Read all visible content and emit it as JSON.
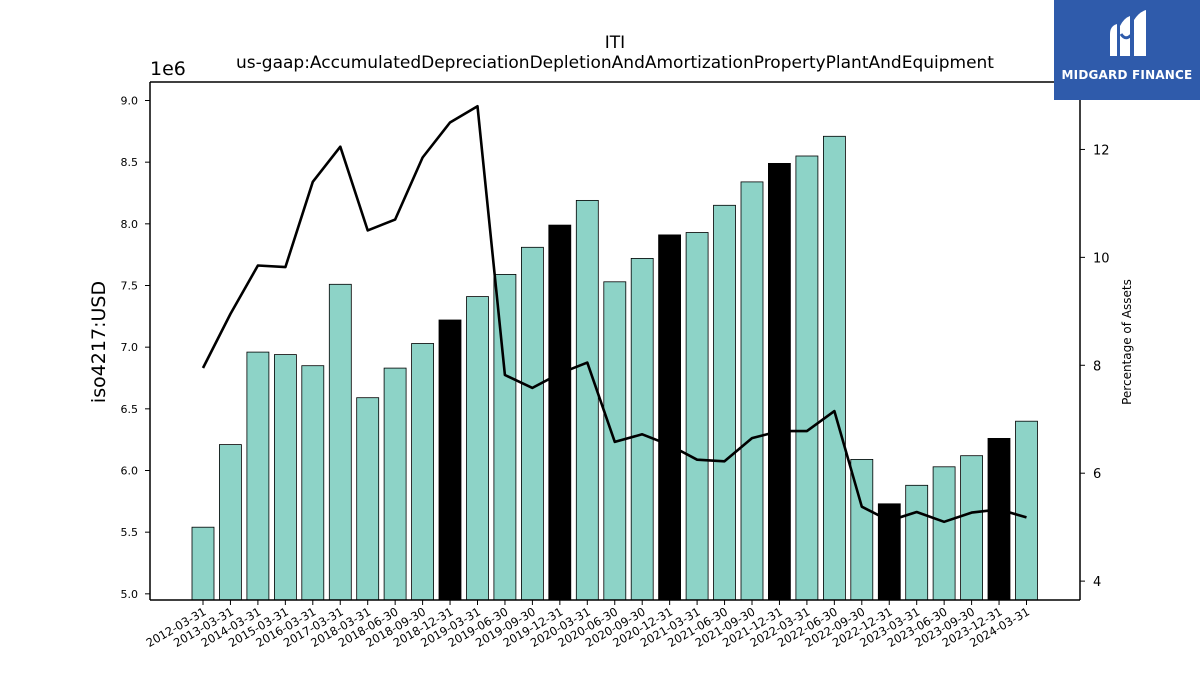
{
  "chart_data": {
    "type": "bar",
    "title": "ITI",
    "subtitle": "us-gaap:AccumulatedDepreciationDepletionAndAmortizationPropertyPlantAndEquipment",
    "ylabel": "iso4217:USD",
    "y_offset_label": "1e6",
    "y2label": "Percentage of Assets",
    "ylim": [
      4.95,
      9.15
    ],
    "y2lim": [
      3.65,
      13.25
    ],
    "yticks": [
      "5.0",
      "5.5",
      "6.0",
      "6.5",
      "7.0",
      "7.5",
      "8.0",
      "8.5",
      "9.0"
    ],
    "y2ticks": [
      "4",
      "6",
      "8",
      "10",
      "12"
    ],
    "categories": [
      "2012-03-31",
      "2013-03-31",
      "2014-03-31",
      "2015-03-31",
      "2016-03-31",
      "2017-03-31",
      "2018-03-31",
      "2018-06-30",
      "2018-09-30",
      "2018-12-31",
      "2019-03-31",
      "2019-06-30",
      "2019-09-30",
      "2019-12-31",
      "2020-03-31",
      "2020-06-30",
      "2020-09-30",
      "2020-12-31",
      "2021-03-31",
      "2021-06-30",
      "2021-09-30",
      "2021-12-31",
      "2022-03-31",
      "2022-06-30",
      "2022-09-30",
      "2022-12-31",
      "2023-03-31",
      "2023-06-30",
      "2023-09-30",
      "2023-12-31",
      "2024-03-31"
    ],
    "series": [
      {
        "type": "bar",
        "values": [
          5.54,
          6.21,
          6.96,
          6.94,
          6.85,
          7.51,
          6.59,
          6.83,
          7.03,
          7.22,
          7.41,
          7.59,
          7.81,
          7.99,
          8.19,
          7.53,
          7.72,
          7.91,
          7.93,
          8.15,
          8.34,
          8.49,
          8.55,
          8.71,
          6.09,
          5.73,
          5.88,
          6.03,
          6.12,
          6.26,
          6.4
        ],
        "colors": [
          "#8dd3c7",
          "#8dd3c7",
          "#8dd3c7",
          "#8dd3c7",
          "#8dd3c7",
          "#8dd3c7",
          "#8dd3c7",
          "#8dd3c7",
          "#8dd3c7",
          "#000000",
          "#8dd3c7",
          "#8dd3c7",
          "#8dd3c7",
          "#000000",
          "#8dd3c7",
          "#8dd3c7",
          "#8dd3c7",
          "#000000",
          "#8dd3c7",
          "#8dd3c7",
          "#8dd3c7",
          "#000000",
          "#8dd3c7",
          "#8dd3c7",
          "#8dd3c7",
          "#000000",
          "#8dd3c7",
          "#8dd3c7",
          "#8dd3c7",
          "#000000",
          "#8dd3c7"
        ]
      },
      {
        "type": "line",
        "axis": "right",
        "color": "#000000",
        "values": [
          7.95,
          8.95,
          9.85,
          9.82,
          11.4,
          12.05,
          10.5,
          10.7,
          11.85,
          12.5,
          12.8,
          7.82,
          7.58,
          7.85,
          8.05,
          6.58,
          6.72,
          6.52,
          6.25,
          6.22,
          6.65,
          6.78,
          6.78,
          7.15,
          5.38,
          5.12,
          5.28,
          5.1,
          5.27,
          5.33,
          5.18
        ]
      }
    ],
    "grid": false,
    "legend": "none"
  },
  "logo": {
    "text": "MIDGARD FINANCE",
    "background": "#2f5bab"
  }
}
